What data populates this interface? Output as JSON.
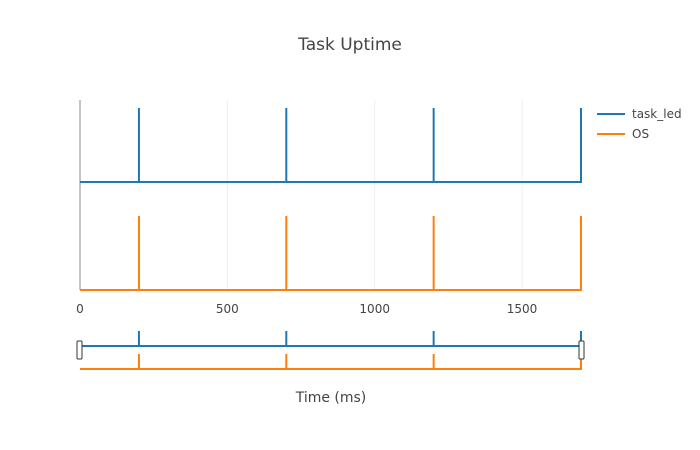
{
  "chart_data": {
    "type": "line",
    "title": "Task Uptime",
    "xlabel": "Time (ms)",
    "xlim": [
      0,
      1700
    ],
    "x_ticks": [
      0,
      500,
      1000,
      1500
    ],
    "grid": true,
    "legend_position": "top-right",
    "has_range_slider": true,
    "series": [
      {
        "name": "task_led",
        "color": "#1f77b4",
        "pulses": [
          200,
          700,
          1200,
          1700
        ],
        "baseline": 0,
        "peak": 1
      },
      {
        "name": "OS",
        "color": "#ff7f0e",
        "pulses": [
          200,
          700,
          1200,
          1700
        ],
        "baseline": 0,
        "peak": 1
      }
    ]
  }
}
